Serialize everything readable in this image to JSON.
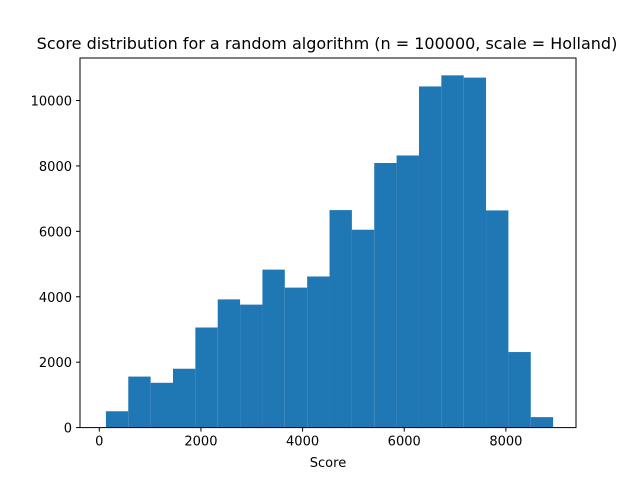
{
  "chart_data": {
    "type": "bar",
    "title": "Score distribution for a random algorithm (n = 100000, scale = Holland)",
    "xlabel": "Score",
    "ylabel": "",
    "bar_color": "#1f77b4",
    "xlim": [
      -380,
      9380
    ],
    "ylim": [
      0,
      11300
    ],
    "grid": false,
    "x_ticks": [
      0,
      2000,
      4000,
      6000,
      8000
    ],
    "y_ticks": [
      0,
      2000,
      4000,
      6000,
      8000,
      10000
    ],
    "x_tick_labels": [
      "0",
      "2000",
      "4000",
      "6000",
      "8000"
    ],
    "y_tick_labels": [
      "0",
      "2000",
      "4000",
      "6000",
      "8000",
      "10000"
    ],
    "bins": [
      {
        "x0": 130,
        "x1": 570,
        "value": 500
      },
      {
        "x0": 570,
        "x1": 1010,
        "value": 1560
      },
      {
        "x0": 1010,
        "x1": 1450,
        "value": 1370
      },
      {
        "x0": 1450,
        "x1": 1890,
        "value": 1800
      },
      {
        "x0": 1890,
        "x1": 2330,
        "value": 3060
      },
      {
        "x0": 2330,
        "x1": 2770,
        "value": 3920
      },
      {
        "x0": 2770,
        "x1": 3210,
        "value": 3760
      },
      {
        "x0": 3210,
        "x1": 3650,
        "value": 4830
      },
      {
        "x0": 3650,
        "x1": 4090,
        "value": 4280
      },
      {
        "x0": 4090,
        "x1": 4530,
        "value": 4620
      },
      {
        "x0": 4530,
        "x1": 4970,
        "value": 6650
      },
      {
        "x0": 4970,
        "x1": 5410,
        "value": 6050
      },
      {
        "x0": 5410,
        "x1": 5850,
        "value": 8090
      },
      {
        "x0": 5850,
        "x1": 6290,
        "value": 8320
      },
      {
        "x0": 6290,
        "x1": 6730,
        "value": 10430
      },
      {
        "x0": 6730,
        "x1": 7170,
        "value": 10770
      },
      {
        "x0": 7170,
        "x1": 7610,
        "value": 10700
      },
      {
        "x0": 7610,
        "x1": 8050,
        "value": 6640
      },
      {
        "x0": 8050,
        "x1": 8490,
        "value": 2310
      },
      {
        "x0": 8490,
        "x1": 8930,
        "value": 320
      }
    ]
  }
}
